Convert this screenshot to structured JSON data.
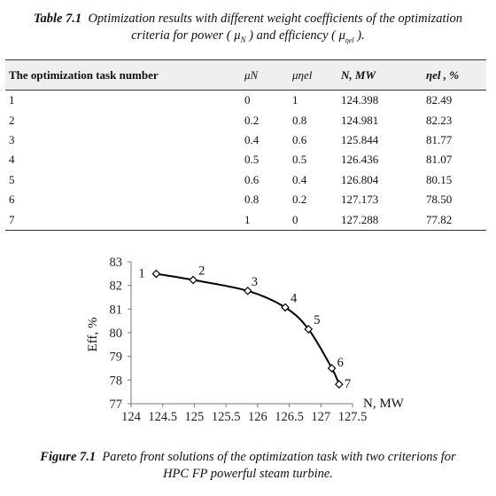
{
  "table_caption": {
    "label": "Table 7.1",
    "line1": "Optimization results with different weight coefficients of the optimization",
    "line2_prefix": "criteria for power (",
    "mu_n": "μ",
    "mu_n_sub": "N",
    "line2_mid": ") and efficiency (",
    "mu_eta": "μ",
    "mu_eta_sub": "ηel",
    "line2_suffix": ")."
  },
  "table": {
    "headers": [
      "The optimization task number",
      "μN",
      "μηel",
      "N, MW",
      "ηel , %"
    ],
    "rows": [
      [
        "1",
        "0",
        "1",
        "124.398",
        "82.49"
      ],
      [
        "2",
        "0.2",
        "0.8",
        "124.981",
        "82.23"
      ],
      [
        "3",
        "0.4",
        "0.6",
        "125.844",
        "81.77"
      ],
      [
        "4",
        "0.5",
        "0.5",
        "126.436",
        "81.07"
      ],
      [
        "5",
        "0.6",
        "0.4",
        "126.804",
        "80.15"
      ],
      [
        "6",
        "0.8",
        "0.2",
        "127.173",
        "78.50"
      ],
      [
        "7",
        "1",
        "0",
        "127.288",
        "77.82"
      ]
    ]
  },
  "figure_caption": {
    "label": "Figure 7.1",
    "line1": "Pareto front solutions of the optimization task with two criterions for",
    "line2": "HPC FP powerful steam turbine."
  },
  "chart_data": {
    "type": "line",
    "xlabel": "N, MW",
    "ylabel": "Eff, %",
    "xlim": [
      124,
      127.5
    ],
    "ylim": [
      77,
      83
    ],
    "x_ticks": [
      "124",
      "124.5",
      "125",
      "125.5",
      "126",
      "126.5",
      "127",
      "127.5"
    ],
    "y_ticks": [
      "77",
      "78",
      "79",
      "80",
      "81",
      "82",
      "83"
    ],
    "grid": false,
    "series": [
      {
        "x": [
          124.398,
          124.981,
          125.844,
          126.436,
          126.804,
          127.173,
          127.288
        ],
        "y": [
          82.49,
          82.23,
          81.77,
          81.07,
          80.15,
          78.5,
          77.82
        ],
        "point_labels": [
          "1",
          "2",
          "3",
          "4",
          "5",
          "6",
          "7"
        ]
      }
    ],
    "line_color": "#000000",
    "marker": "open-diamond"
  }
}
